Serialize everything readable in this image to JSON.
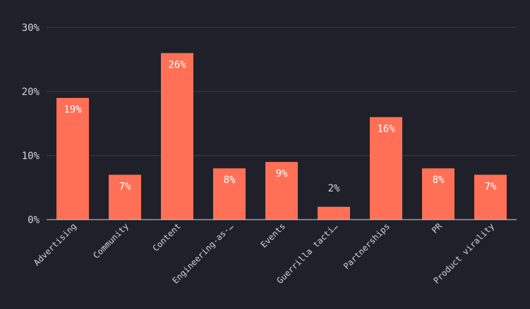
{
  "chart_data": {
    "type": "bar",
    "title": "",
    "xlabel": "",
    "ylabel": "",
    "categories": [
      "Advertising",
      "Community",
      "Content",
      "Engineering-as-…",
      "Events",
      "Guerrilla tacti…",
      "Partnerships",
      "PR",
      "Product virality"
    ],
    "values": [
      19,
      7,
      26,
      8,
      9,
      2,
      16,
      8,
      7
    ],
    "value_labels": [
      "19%",
      "7%",
      "26%",
      "8%",
      "9%",
      "2%",
      "16%",
      "8%",
      "7%"
    ],
    "yticks": [
      0,
      10,
      20,
      30
    ],
    "ytick_labels": [
      "0%",
      "10%",
      "20%",
      "30%"
    ],
    "ylim": [
      0,
      30
    ],
    "grid": true,
    "colors": {
      "bar": "#ff7056",
      "bar_label_inside": "#ffffff",
      "bar_label_outside": "#d4d4d8",
      "grid": "#3c3e4a",
      "axis": "#d4d4d8",
      "background": "#1f2029"
    }
  }
}
